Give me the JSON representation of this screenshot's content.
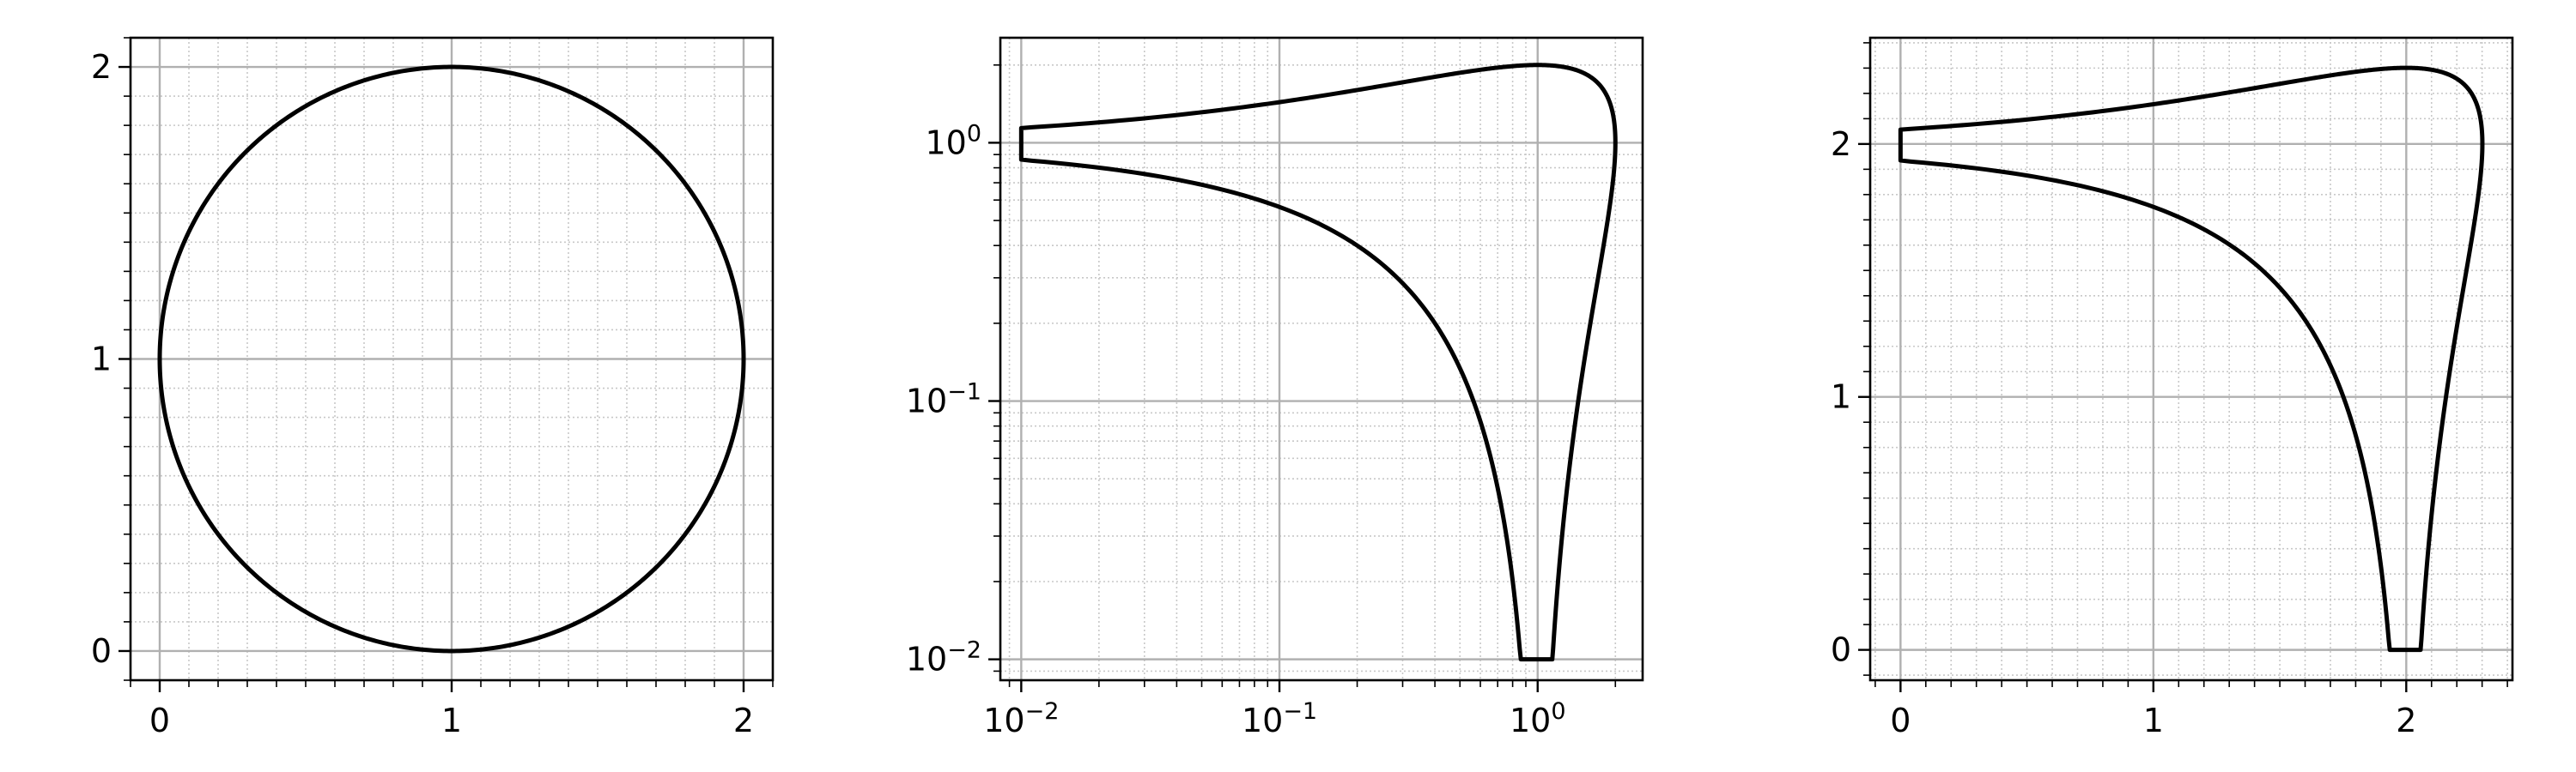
{
  "chart_data": [
    {
      "type": "line",
      "title": "",
      "xlabel": "",
      "ylabel": "",
      "xscale": "linear",
      "yscale": "linear",
      "xlim": [
        -0.1,
        2.1
      ],
      "ylim": [
        -0.1,
        2.1
      ],
      "grid": {
        "major": true,
        "minor": true
      },
      "xticks": [
        0,
        1,
        2
      ],
      "yticks": [
        0,
        1,
        2
      ],
      "xtick_labels": [
        "0",
        "1",
        "2"
      ],
      "ytick_labels": [
        "0",
        "1",
        "2"
      ],
      "series": [
        {
          "curve": "circle",
          "center": [
            1,
            1
          ],
          "radius": 1,
          "x": [
            2,
            1.866,
            1.5,
            1,
            0.5,
            0.134,
            0,
            0.134,
            0.5,
            1,
            1.5,
            1.866,
            2
          ],
          "y": [
            1,
            1.5,
            1.866,
            2,
            1.866,
            1.5,
            1,
            0.5,
            0.134,
            0,
            0.134,
            0.5,
            1
          ],
          "color": "#000000"
        }
      ]
    },
    {
      "type": "line",
      "title": "",
      "xlabel": "",
      "ylabel": "",
      "xscale": "log",
      "yscale": "log",
      "xlim": [
        0.0083,
        2.55
      ],
      "ylim": [
        0.0083,
        2.55
      ],
      "grid": {
        "major": true,
        "minor": true
      },
      "xticks": [
        0.01,
        0.1,
        1
      ],
      "yticks": [
        0.01,
        0.1,
        1
      ],
      "xtick_labels": [
        [
          "10",
          "−2"
        ],
        [
          "10",
          "−1"
        ],
        [
          "10",
          "0"
        ]
      ],
      "ytick_labels": [
        [
          "10",
          "−2"
        ],
        [
          "10",
          "−1"
        ],
        [
          "10",
          "0"
        ]
      ],
      "series": [
        {
          "curve": "circle (x = 1 + cos t, y = 1 + sin t) shown on log–log axes",
          "x": [
            2,
            1.866,
            1.5,
            1,
            0.5,
            0.134,
            0.01,
            0.134,
            0.5,
            1,
            1.5,
            1.866,
            2
          ],
          "y": [
            1,
            1.5,
            1.866,
            2,
            1.866,
            1.5,
            1,
            0.5,
            0.134,
            0.01,
            0.134,
            0.5,
            1
          ],
          "color": "#000000"
        }
      ]
    },
    {
      "type": "line",
      "title": "",
      "xlabel": "",
      "ylabel": "",
      "xscale": "linear",
      "yscale": "linear",
      "xlim": [
        -0.12,
        2.42
      ],
      "ylim": [
        -0.12,
        2.42
      ],
      "grid": {
        "major": true,
        "minor": true
      },
      "xticks": [
        0,
        1,
        2
      ],
      "yticks": [
        0,
        1,
        2
      ],
      "xtick_labels": [
        "0",
        "1",
        "2"
      ],
      "ytick_labels": [
        "0",
        "1",
        "2"
      ],
      "series": [
        {
          "curve": "same curve with coordinates mapped to log10(v) + 2",
          "x": [
            2.301,
            2.271,
            2.176,
            2,
            1.699,
            1.127,
            0,
            1.127,
            1.699,
            2,
            2.176,
            2.271,
            2.301
          ],
          "y": [
            2,
            2.176,
            2.271,
            2.301,
            2.271,
            2.176,
            2,
            1.699,
            1.127,
            0,
            1.127,
            1.699,
            2
          ],
          "color": "#000000"
        }
      ]
    }
  ]
}
